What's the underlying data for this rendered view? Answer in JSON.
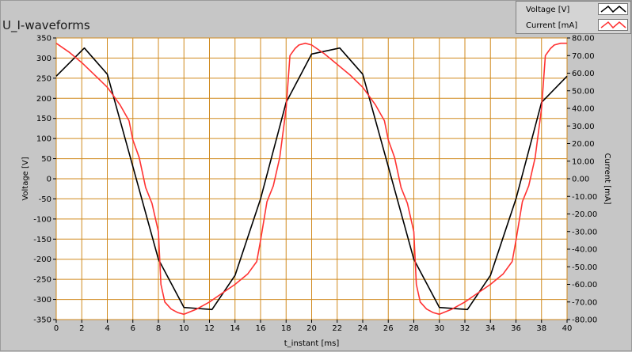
{
  "chart_title": "U_I-waveforms",
  "legend": [
    {
      "label": "Voltage [V]",
      "color": "#000000"
    },
    {
      "label": "Current [mA]",
      "color": "#ff3333"
    }
  ],
  "colors": {
    "plot_bg": "#ffffff",
    "grid": "#d08a1e",
    "panel_bg": "#c6c6c6",
    "voltage": "#000000",
    "current": "#ff3333"
  },
  "chart_data": {
    "type": "line",
    "xlabel": "t_instant [ms]",
    "ylabel_left": "Voltage [V]",
    "ylabel_right": "Current [mA]",
    "xlim": [
      0,
      40
    ],
    "ylim_left": [
      -350,
      350
    ],
    "ylim_right": [
      -80,
      80
    ],
    "x_ticks": [
      "0",
      "2",
      "4",
      "6",
      "8",
      "10",
      "12",
      "14",
      "16",
      "18",
      "20",
      "22",
      "24",
      "26",
      "28",
      "30",
      "32",
      "34",
      "36",
      "38",
      "40"
    ],
    "y_left_ticks": [
      "350",
      "300",
      "250",
      "200",
      "150",
      "100",
      "50",
      "0",
      "-50",
      "-100",
      "-150",
      "-200",
      "-250",
      "-300",
      "-350"
    ],
    "y_right_ticks": [
      "80.00",
      "70.00",
      "60.00",
      "50.00",
      "40.00",
      "30.00",
      "20.00",
      "10.00",
      "0.00",
      "-10.00",
      "-20.00",
      "-30.00",
      "-40.00",
      "-50.00",
      "-60.00",
      "-70.00",
      "-80.00"
    ],
    "grid": true,
    "series": [
      {
        "name": "Voltage [V]",
        "axis": "left",
        "x": [
          0,
          2.2,
          4,
          6,
          8,
          10,
          12.2,
          14,
          16,
          18,
          20,
          22.2,
          24,
          26,
          28,
          30,
          32.2,
          34,
          36,
          38,
          40
        ],
        "y": [
          255,
          325,
          260,
          30,
          -200,
          -320,
          -325,
          -240,
          -50,
          190,
          310,
          325,
          260,
          30,
          -200,
          -320,
          -325,
          -240,
          -50,
          190,
          255
        ]
      },
      {
        "name": "Current [mA]",
        "axis": "right",
        "x": [
          0,
          1,
          2,
          3,
          4,
          5,
          5.7,
          6,
          6.5,
          7,
          7.5,
          8,
          8.2,
          8.5,
          9,
          9.5,
          10,
          11,
          12,
          13,
          14,
          15,
          15.7,
          16,
          16.5,
          17,
          17.5,
          18,
          18.3,
          18.7,
          19,
          19.5,
          20,
          21,
          22,
          23,
          24,
          25,
          25.7,
          26,
          26.5,
          27,
          27.5,
          28,
          28.2,
          28.5,
          29,
          29.5,
          30,
          31,
          32,
          33,
          34,
          35,
          35.7,
          36,
          36.5,
          37,
          37.5,
          38,
          38.3,
          38.7,
          39,
          39.5,
          40
        ],
        "y": [
          77,
          72,
          66,
          59,
          52,
          42,
          33,
          22,
          12,
          -5,
          -14,
          -30,
          -60,
          -70,
          -74,
          -76,
          -77,
          -74,
          -70,
          -65,
          -60,
          -54,
          -47,
          -35,
          -13,
          -4,
          12,
          40,
          70,
          74,
          76,
          77,
          76,
          71,
          65,
          59,
          52,
          42,
          33,
          22,
          12,
          -5,
          -14,
          -30,
          -60,
          -70,
          -74,
          -76,
          -77,
          -74,
          -70,
          -65,
          -60,
          -54,
          -47,
          -35,
          -13,
          -4,
          12,
          40,
          70,
          74,
          76,
          77,
          77
        ]
      }
    ]
  }
}
